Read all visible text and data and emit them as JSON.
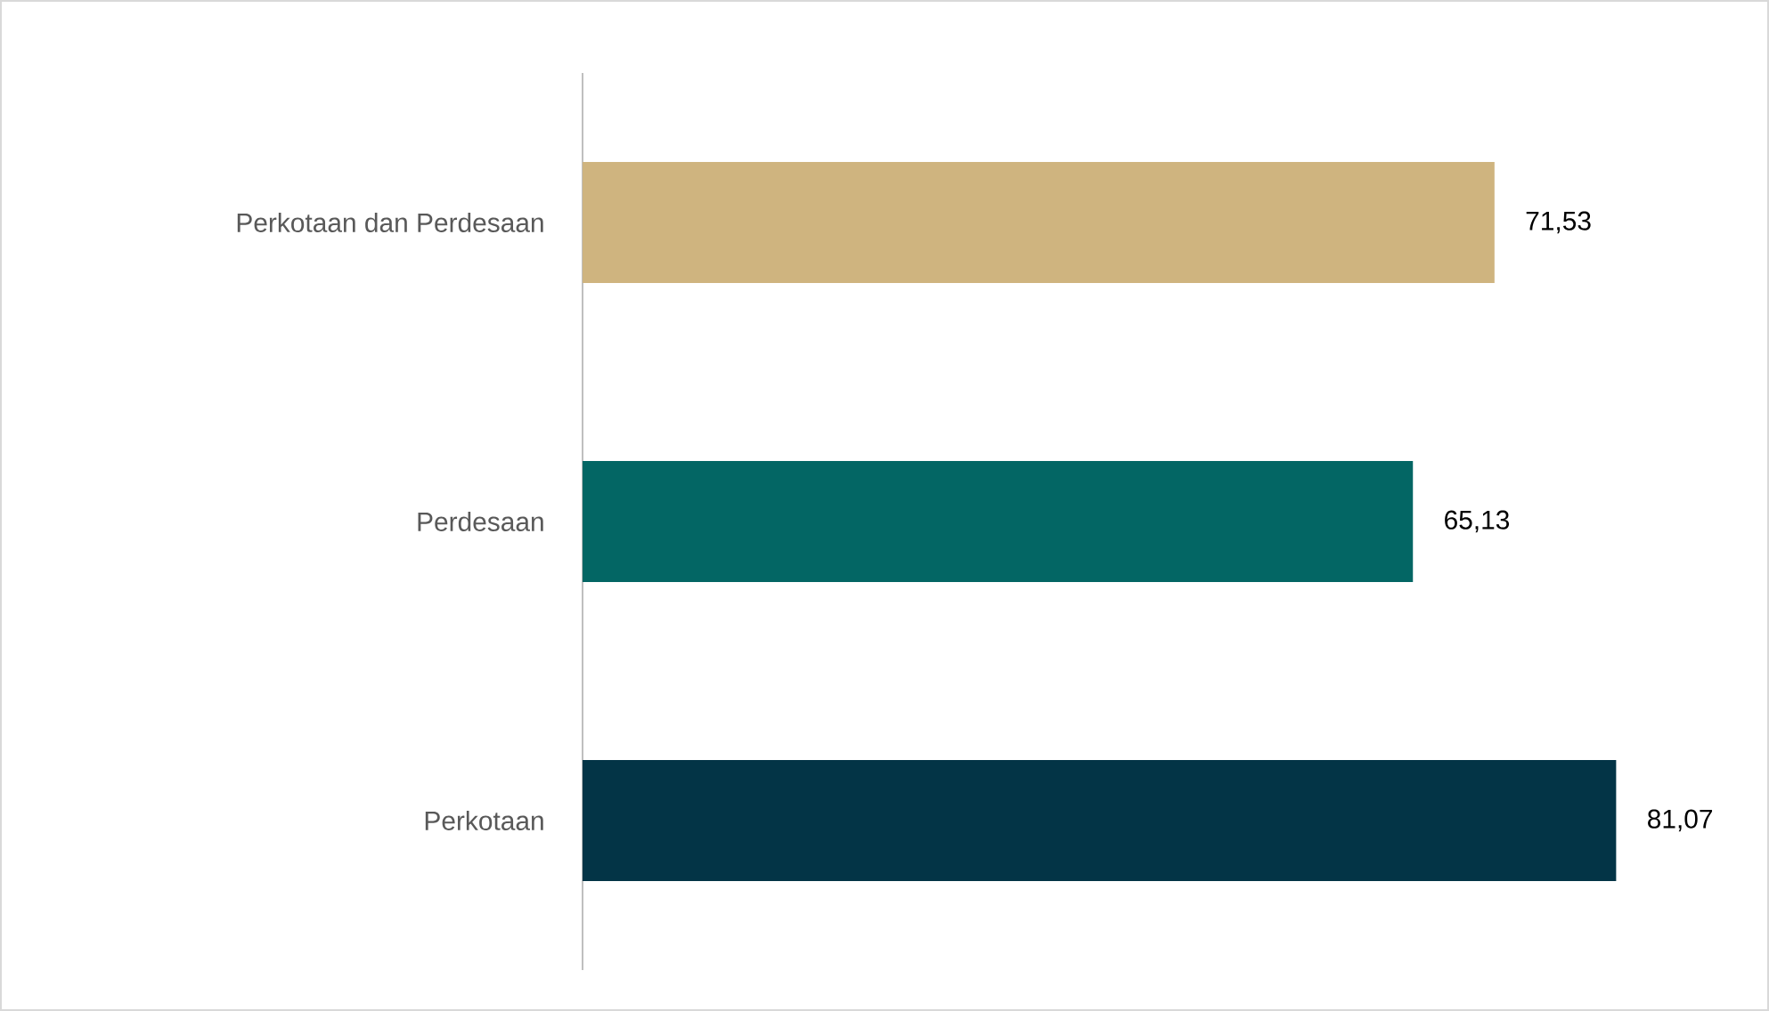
{
  "chart_data": {
    "type": "bar",
    "orientation": "horizontal",
    "categories": [
      "Perkotaan dan Perdesaan",
      "Perdesaan",
      "Perkotaan"
    ],
    "values": [
      71.53,
      65.13,
      81.07
    ],
    "value_labels": [
      "71,53",
      "65,13",
      "81,07"
    ],
    "colors": [
      "#cfb47f",
      "#036664",
      "#033446"
    ]
  }
}
